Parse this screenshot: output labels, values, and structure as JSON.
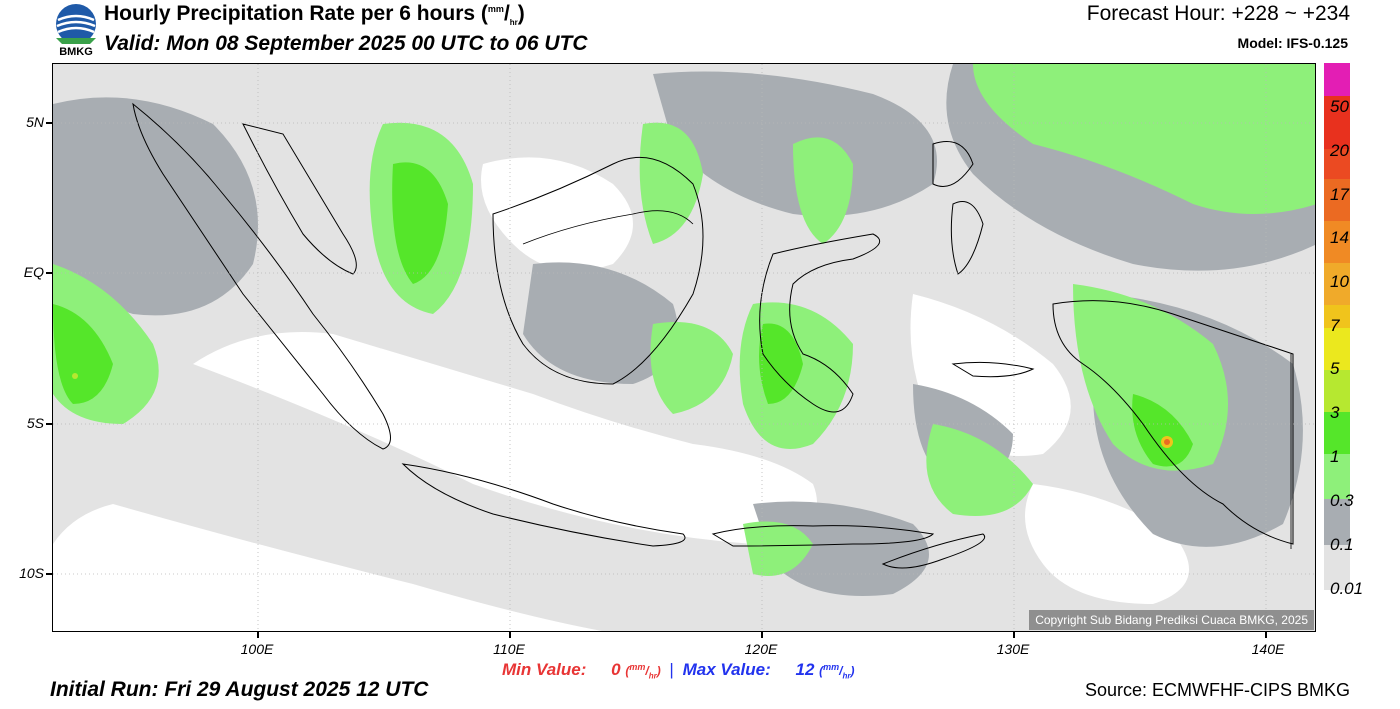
{
  "header": {
    "logo_text": "BMKG",
    "title": "Hourly Precipitation Rate per 6 hours",
    "title_unit_top": "mm",
    "title_unit_bottom": "hr",
    "valid": "Valid: Mon 08 September 2025 00 UTC to 06 UTC",
    "forecast_hour": "Forecast Hour: +228 ~ +234",
    "model": "Model: IFS-0.125"
  },
  "map": {
    "lat_labels": [
      "5N",
      "EQ",
      "5S",
      "10S"
    ],
    "lon_labels": [
      "100E",
      "110E",
      "120E",
      "130E",
      "140E"
    ],
    "copyright": "Copyright Sub Bidang Prediksi Cuaca BMKG, 2025"
  },
  "stats": {
    "min_label": "Min Value:",
    "min_value": "0",
    "max_label": "Max Value:",
    "max_value": "12",
    "separator": "|",
    "unit_top": "mm",
    "unit_bottom": "hr"
  },
  "footer": {
    "initial_run": "Initial Run: Fri 29 August 2025 12 UTC",
    "source": "Source: ECMWFHF-CIPS BMKG"
  },
  "colorbar": {
    "labels": [
      "50",
      "20",
      "17",
      "14",
      "10",
      "7",
      "5",
      "3",
      "1",
      "0.3",
      "0.1",
      "0.01"
    ],
    "colors": [
      "#e31eb4",
      "#e8311e",
      "#eb6a22",
      "#f08a24",
      "#f0aa2a",
      "#f0c41c",
      "#ebd61e",
      "#eef22a",
      "#b6e830",
      "#55e62a",
      "#8ef07a",
      "#a8adb2",
      "#e3e3e3"
    ],
    "palette": {
      "land_border": "#000000",
      "trace": "#e3e3e3",
      "light": "#a8adb2",
      "moderate": "#8ef07a",
      "heavy": "#55e62a"
    }
  }
}
